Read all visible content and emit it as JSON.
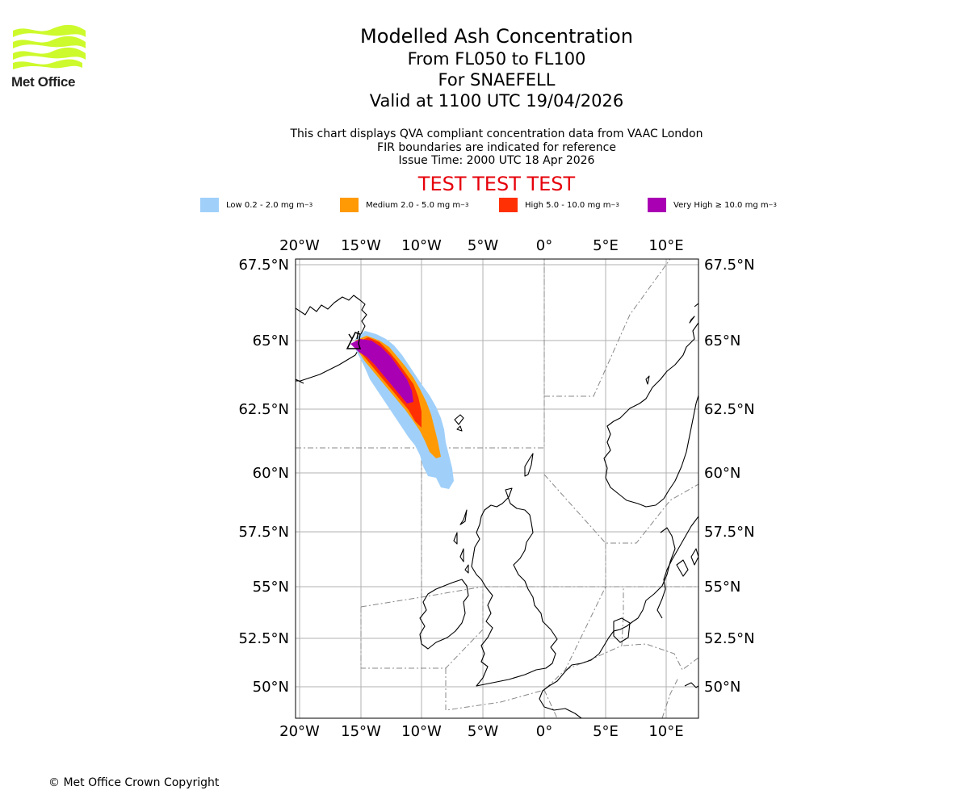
{
  "logo": {
    "name": "Met Office",
    "color": "#cdfa2c"
  },
  "title": {
    "line1": "Modelled Ash Concentration",
    "line2": "From FL050 to FL100",
    "line3": "For SNAEFELL",
    "line4": "Valid at 1100 UTC 19/04/2026"
  },
  "subtitle": {
    "line1": "This chart displays QVA compliant concentration data from VAAC London",
    "line2": "FIR boundaries are indicated for reference",
    "line3": "Issue Time: 2000 UTC 18 Apr 2026"
  },
  "test_banner": "TEST TEST TEST",
  "legend": [
    {
      "label": "Low 0.2 - 2.0 mg m",
      "exp": "−3",
      "color": "#a0d0fa"
    },
    {
      "label": "Medium 2.0 - 5.0 mg m",
      "exp": "−3",
      "color": "#ff9a05"
    },
    {
      "label": "High 5.0 - 10.0 mg m",
      "exp": "−3",
      "color": "#ff3003"
    },
    {
      "label": "Very High  ≥  10.0 mg m",
      "exp": "−3",
      "color": "#aa00b4"
    }
  ],
  "map": {
    "lon_ticks": [
      "20°W",
      "15°W",
      "10°W",
      "5°W",
      "0°",
      "5°E",
      "10°E"
    ],
    "lat_ticks": [
      "67.5°N",
      "65°N",
      "62.5°N",
      "60°N",
      "57.5°N",
      "55°N",
      "52.5°N",
      "50°N"
    ],
    "volcano": "SNAEFELL"
  },
  "copyright": "© Met Office Crown Copyright"
}
